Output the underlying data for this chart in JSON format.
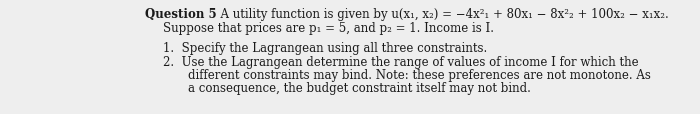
{
  "background_color": "#eeeeee",
  "text_color": "#1a1a1a",
  "font_size": 8.5,
  "font_family": "serif",
  "line1_bold": "Question 5",
  "line1_rest": "  A utility function is given by u(x₁, x₂) = −4x²₁ + 80x₁ − 8x²₂ + 100x₂ − x₁x₂.",
  "line2": "Suppose that prices are p₁ = 5, and p₂ = 1. Income is I.",
  "item1": "1.  Specify the Lagrangean using all three constraints.",
  "item2a": "2.  Use the Lagrangean determine the range of values of income I for which the",
  "item2b": "different constraints may bind. Note: these preferences are not monotone. As",
  "item2c": "a consequence, the budget constraint itself may not bind."
}
